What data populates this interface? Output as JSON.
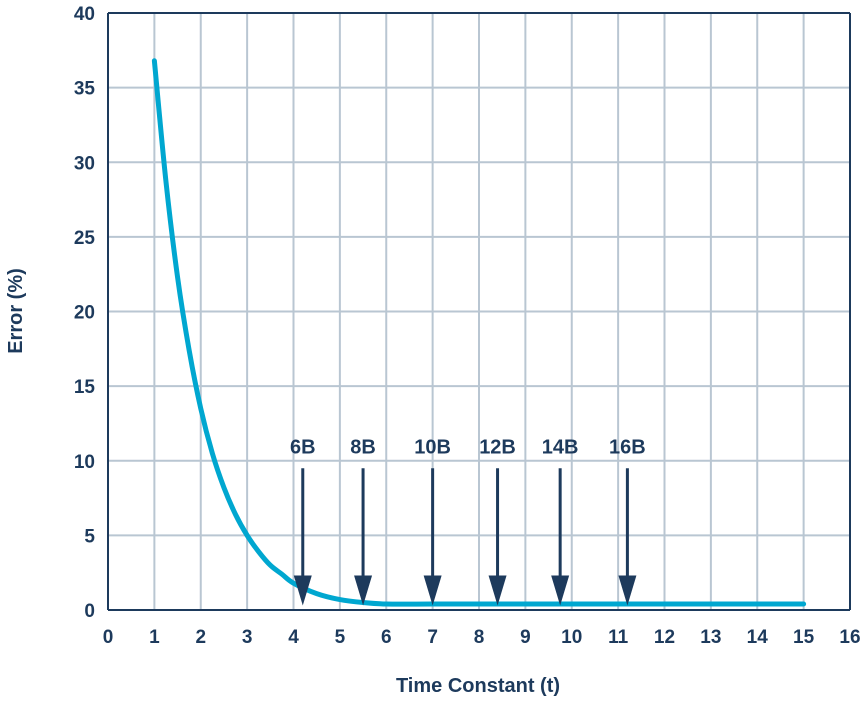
{
  "chart_data": {
    "type": "line",
    "title": "",
    "xlabel": "Time Constant (t)",
    "ylabel": "Error (%)",
    "xlim": [
      0,
      16
    ],
    "ylim": [
      0,
      40
    ],
    "x_ticks": [
      "0",
      "1",
      "2",
      "3",
      "4",
      "5",
      "6",
      "7",
      "8",
      "9",
      "10",
      "11",
      "12",
      "13",
      "14",
      "15",
      "16"
    ],
    "y_ticks": [
      "0",
      "5",
      "10",
      "15",
      "20",
      "25",
      "30",
      "35",
      "40"
    ],
    "grid": true,
    "series": [
      {
        "color": "#00a7d0",
        "x": [
          1,
          1.25,
          1.5,
          1.75,
          2,
          2.25,
          2.5,
          2.75,
          3,
          3.25,
          3.5,
          3.75,
          4,
          4.5,
          5,
          5.5,
          6,
          7,
          8,
          9,
          10,
          11,
          12,
          13,
          14,
          15
        ],
        "y": [
          36.8,
          28.7,
          22.3,
          17.4,
          13.5,
          10.5,
          8.2,
          6.4,
          5.0,
          3.9,
          3.0,
          2.4,
          1.8,
          1.1,
          0.7,
          0.5,
          0.4,
          0.4,
          0.4,
          0.4,
          0.4,
          0.4,
          0.4,
          0.4,
          0.4,
          0.4
        ]
      }
    ],
    "annotations": [
      {
        "label": "6B",
        "x": 4.2
      },
      {
        "label": "8B",
        "x": 5.5
      },
      {
        "label": "10B",
        "x": 7.0
      },
      {
        "label": "12B",
        "x": 8.4
      },
      {
        "label": "14B",
        "x": 9.75
      },
      {
        "label": "16B",
        "x": 11.2
      }
    ],
    "annotation_color": "#1d3a5c"
  }
}
